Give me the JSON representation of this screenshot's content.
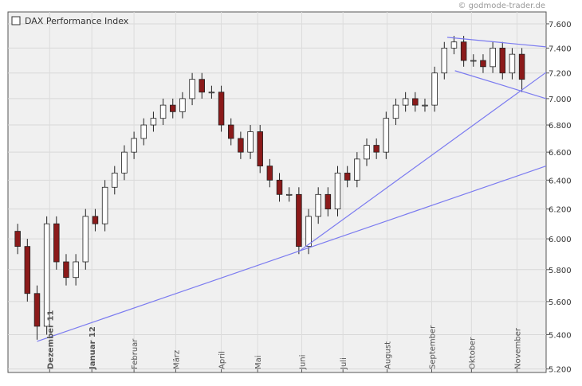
{
  "chart_data": {
    "type": "candlestick",
    "title": "DAX Performance Index",
    "source": "© godmode-trader.de",
    "x": [
      0,
      1,
      2,
      3,
      4,
      5,
      6,
      7,
      8,
      9,
      10,
      11,
      12,
      13,
      14,
      15,
      16,
      17,
      18,
      19,
      20,
      21,
      22,
      23,
      24,
      25,
      26,
      27,
      28,
      29,
      30,
      31,
      32,
      33,
      34,
      35,
      36,
      37,
      38,
      39,
      40,
      41,
      42,
      43,
      44,
      45,
      46,
      47,
      48,
      49,
      50,
      51,
      52
    ],
    "open": [
      6050,
      5950,
      5650,
      5450,
      6100,
      5850,
      5750,
      5850,
      6150,
      6100,
      6350,
      6450,
      6600,
      6700,
      6800,
      6850,
      6950,
      6900,
      7000,
      7150,
      7050,
      7050,
      6800,
      6700,
      6600,
      6750,
      6500,
      6400,
      6300,
      6300,
      5950,
      6150,
      6300,
      6200,
      6450,
      6400,
      6550,
      6650,
      6600,
      6850,
      6950,
      7000,
      6950,
      6950,
      7200,
      7400,
      7450,
      7300,
      7300,
      7250,
      7400,
      7200,
      7350
    ],
    "high": [
      6100,
      6000,
      5700,
      6150,
      6150,
      5900,
      5900,
      6200,
      6200,
      6400,
      6500,
      6650,
      6750,
      6850,
      6900,
      7000,
      7000,
      7050,
      7200,
      7200,
      7100,
      7100,
      6850,
      6750,
      6800,
      6800,
      6550,
      6450,
      6350,
      6350,
      6200,
      6350,
      6350,
      6500,
      6500,
      6600,
      6700,
      6700,
      6900,
      7000,
      7050,
      7050,
      7000,
      7250,
      7450,
      7500,
      7500,
      7350,
      7350,
      7450,
      7450,
      7400,
      7400
    ],
    "low": [
      5900,
      5600,
      5370,
      5400,
      5800,
      5700,
      5700,
      5800,
      6050,
      6050,
      6300,
      6400,
      6550,
      6650,
      6750,
      6800,
      6850,
      6850,
      6950,
      7000,
      7000,
      6750,
      6650,
      6550,
      6550,
      6450,
      6350,
      6250,
      6250,
      5900,
      5900,
      6100,
      6150,
      6150,
      6350,
      6350,
      6500,
      6550,
      6550,
      6800,
      6900,
      6900,
      6900,
      6900,
      7150,
      7350,
      7250,
      7250,
      7200,
      7200,
      7150,
      7150,
      7050
    ],
    "close": [
      5950,
      5650,
      5450,
      6100,
      5850,
      5750,
      5850,
      6150,
      6100,
      6350,
      6450,
      6600,
      6700,
      6800,
      6850,
      6950,
      6900,
      7000,
      7150,
      7050,
      7050,
      6800,
      6700,
      6600,
      6750,
      6500,
      6400,
      6300,
      6300,
      5950,
      6150,
      6300,
      6200,
      6450,
      6400,
      6550,
      6650,
      6600,
      6850,
      6950,
      7000,
      6950,
      6950,
      7200,
      7400,
      7450,
      7300,
      7300,
      7250,
      7400,
      7200,
      7350,
      7150
    ],
    "up_color": "#ffffff",
    "down_color": "#8b1a1a",
    "trendline_color": "#7b7bf0",
    "trendlines": [
      {
        "x": [
          2,
          54.5
        ],
        "y": [
          5360,
          6500
        ]
      },
      {
        "x": [
          29,
          54.5
        ],
        "y": [
          5917,
          7205
        ]
      },
      {
        "x": [
          44.3,
          54.5
        ],
        "y": [
          7488,
          7410
        ]
      },
      {
        "x": [
          45.1,
          54.5
        ],
        "y": [
          7218,
          7000
        ]
      }
    ],
    "xlim": [
      -1,
      54.5
    ],
    "xticks": [
      {
        "value": 3.3,
        "label": "Dezember 11"
      },
      {
        "value": 7.65,
        "label": "Januar 12"
      },
      {
        "value": 12.0,
        "label": "Februar"
      },
      {
        "value": 16.3,
        "label": "März"
      },
      {
        "value": 21.0,
        "label": "April"
      },
      {
        "value": 24.75,
        "label": "Mai"
      },
      {
        "value": 29.3,
        "label": "Juni"
      },
      {
        "value": 33.55,
        "label": "Juli"
      },
      {
        "value": 38.1,
        "label": "August"
      },
      {
        "value": 42.7,
        "label": "September"
      },
      {
        "value": 46.8,
        "label": "Oktober"
      },
      {
        "value": 51.5,
        "label": "November"
      }
    ],
    "ylim": [
      5180,
      7700
    ],
    "log_scale": true,
    "grid": true,
    "yticks": [
      {
        "value": 5200,
        "label": "5.200"
      },
      {
        "value": 5400,
        "label": "5.400"
      },
      {
        "value": 5600,
        "label": "5.600"
      },
      {
        "value": 5800,
        "label": "5.800"
      },
      {
        "value": 6000,
        "label": "6.000"
      },
      {
        "value": 6200,
        "label": "6.200"
      },
      {
        "value": 6400,
        "label": "6.400"
      },
      {
        "value": 6600,
        "label": "6.600"
      },
      {
        "value": 6800,
        "label": "6.800"
      },
      {
        "value": 7000,
        "label": "7.000"
      },
      {
        "value": 7200,
        "label": "7.200"
      },
      {
        "value": 7400,
        "label": "7.400"
      },
      {
        "value": 7600,
        "label": "7.600"
      }
    ]
  }
}
